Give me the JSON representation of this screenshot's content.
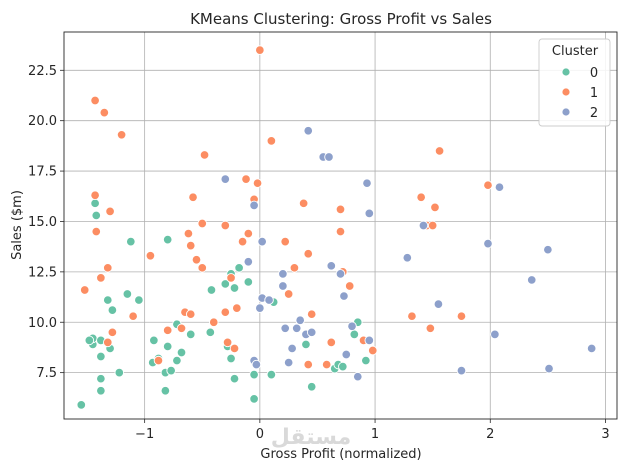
{
  "chart_data": {
    "type": "scatter",
    "title": "KMeans Clustering: Gross Profit vs Sales",
    "xlabel": "Gross Profit (normalized)",
    "ylabel": "Sales ($m)",
    "xlim": [
      -1.7,
      3.1
    ],
    "ylim": [
      5.2,
      24.4
    ],
    "x_ticks": [
      -1,
      0,
      1,
      2,
      3
    ],
    "x_tick_labels": [
      "−1",
      "0",
      "1",
      "2",
      "3"
    ],
    "y_ticks": [
      7.5,
      10.0,
      12.5,
      15.0,
      17.5,
      20.0,
      22.5
    ],
    "y_tick_labels": [
      "7.5",
      "10.0",
      "12.5",
      "15.0",
      "17.5",
      "20.0",
      "22.5"
    ],
    "grid": true,
    "legend": {
      "title": "Cluster",
      "placement": "top-right"
    },
    "watermark": "مستقل",
    "series": [
      {
        "name": "0",
        "color": "#66c2a5",
        "points": [
          [
            -1.55,
            5.9
          ],
          [
            -1.38,
            6.6
          ],
          [
            -1.38,
            7.2
          ],
          [
            -1.22,
            7.5
          ],
          [
            -1.45,
            8.9
          ],
          [
            -1.38,
            8.3
          ],
          [
            -1.3,
            8.7
          ],
          [
            -1.45,
            9.2
          ],
          [
            -1.48,
            9.1
          ],
          [
            -1.38,
            9.1
          ],
          [
            -1.32,
            11.1
          ],
          [
            -1.28,
            10.6
          ],
          [
            -1.15,
            11.4
          ],
          [
            -1.05,
            11.1
          ],
          [
            -1.12,
            14.0
          ],
          [
            -1.43,
            15.9
          ],
          [
            -1.42,
            15.3
          ],
          [
            -0.92,
            9.1
          ],
          [
            -0.93,
            8.0
          ],
          [
            -0.88,
            8.2
          ],
          [
            -0.82,
            7.5
          ],
          [
            -0.77,
            7.6
          ],
          [
            -0.72,
            8.1
          ],
          [
            -0.68,
            8.5
          ],
          [
            -0.82,
            6.6
          ],
          [
            -0.8,
            8.8
          ],
          [
            -0.72,
            9.9
          ],
          [
            -0.6,
            9.4
          ],
          [
            -0.43,
            9.5
          ],
          [
            -0.8,
            14.1
          ],
          [
            -0.42,
            11.6
          ],
          [
            -0.3,
            11.9
          ],
          [
            -0.25,
            12.4
          ],
          [
            -0.18,
            12.7
          ],
          [
            -0.22,
            11.7
          ],
          [
            -0.1,
            12.0
          ],
          [
            -0.28,
            8.8
          ],
          [
            -0.25,
            8.2
          ],
          [
            -0.22,
            7.2
          ],
          [
            -0.05,
            7.4
          ],
          [
            0.1,
            7.4
          ],
          [
            -0.05,
            6.2
          ],
          [
            0.12,
            11.0
          ],
          [
            0.4,
            8.9
          ],
          [
            0.45,
            6.8
          ],
          [
            0.65,
            7.7
          ],
          [
            0.68,
            7.9
          ],
          [
            0.72,
            7.8
          ],
          [
            0.82,
            9.4
          ],
          [
            0.92,
            8.1
          ],
          [
            0.85,
            10.0
          ]
        ]
      },
      {
        "name": "1",
        "color": "#fc8d62",
        "points": [
          [
            -1.43,
            21.0
          ],
          [
            -1.35,
            20.4
          ],
          [
            -1.2,
            19.3
          ],
          [
            -1.43,
            16.3
          ],
          [
            -1.3,
            15.5
          ],
          [
            -1.42,
            14.5
          ],
          [
            -1.32,
            12.7
          ],
          [
            -1.38,
            12.2
          ],
          [
            -1.52,
            11.6
          ],
          [
            -1.28,
            9.5
          ],
          [
            -1.32,
            9.0
          ],
          [
            -1.1,
            10.3
          ],
          [
            -0.95,
            13.3
          ],
          [
            -0.88,
            8.1
          ],
          [
            -0.8,
            9.6
          ],
          [
            -0.68,
            9.7
          ],
          [
            -0.62,
            14.4
          ],
          [
            -0.6,
            13.8
          ],
          [
            -0.58,
            16.2
          ],
          [
            -0.55,
            13.1
          ],
          [
            -0.48,
            18.3
          ],
          [
            -0.5,
            14.9
          ],
          [
            -0.5,
            12.7
          ],
          [
            -0.65,
            10.5
          ],
          [
            -0.6,
            10.4
          ],
          [
            -0.4,
            10.0
          ],
          [
            -0.3,
            10.5
          ],
          [
            -0.2,
            10.7
          ],
          [
            -0.3,
            14.8
          ],
          [
            -0.25,
            12.2
          ],
          [
            -0.15,
            14.0
          ],
          [
            -0.1,
            14.4
          ],
          [
            -0.12,
            17.1
          ],
          [
            -0.05,
            16.1
          ],
          [
            -0.02,
            16.9
          ],
          [
            -0.28,
            9.0
          ],
          [
            -0.22,
            8.7
          ],
          [
            0.0,
            23.5
          ],
          [
            0.1,
            19.0
          ],
          [
            0.22,
            14.0
          ],
          [
            0.25,
            11.4
          ],
          [
            0.3,
            12.7
          ],
          [
            0.38,
            15.9
          ],
          [
            0.42,
            13.4
          ],
          [
            0.45,
            10.4
          ],
          [
            0.42,
            7.9
          ],
          [
            0.58,
            7.9
          ],
          [
            0.62,
            9.0
          ],
          [
            0.7,
            14.5
          ],
          [
            0.7,
            15.6
          ],
          [
            0.72,
            12.5
          ],
          [
            0.78,
            11.8
          ],
          [
            0.9,
            9.1
          ],
          [
            0.98,
            8.6
          ],
          [
            1.4,
            16.2
          ],
          [
            1.45,
            14.8
          ],
          [
            1.48,
            9.7
          ],
          [
            1.5,
            14.8
          ],
          [
            1.52,
            15.7
          ],
          [
            1.56,
            18.5
          ],
          [
            1.32,
            10.3
          ],
          [
            1.75,
            10.3
          ],
          [
            1.98,
            16.8
          ]
        ]
      },
      {
        "name": "2",
        "color": "#8da0cb",
        "points": [
          [
            -0.3,
            17.1
          ],
          [
            -0.05,
            15.8
          ],
          [
            -0.05,
            8.1
          ],
          [
            -0.1,
            13.0
          ],
          [
            0.02,
            14.0
          ],
          [
            0.02,
            11.2
          ],
          [
            0.0,
            10.7
          ],
          [
            -0.03,
            7.9
          ],
          [
            0.08,
            11.1
          ],
          [
            0.2,
            12.4
          ],
          [
            0.2,
            11.8
          ],
          [
            0.22,
            9.7
          ],
          [
            0.25,
            8.0
          ],
          [
            0.28,
            8.7
          ],
          [
            0.32,
            9.7
          ],
          [
            0.35,
            10.1
          ],
          [
            0.4,
            9.4
          ],
          [
            0.42,
            19.5
          ],
          [
            0.45,
            9.5
          ],
          [
            0.55,
            18.2
          ],
          [
            0.6,
            18.2
          ],
          [
            0.62,
            12.8
          ],
          [
            0.7,
            12.4
          ],
          [
            0.73,
            11.3
          ],
          [
            0.75,
            8.4
          ],
          [
            0.8,
            9.8
          ],
          [
            0.85,
            7.3
          ],
          [
            0.93,
            16.9
          ],
          [
            0.95,
            15.4
          ],
          [
            0.95,
            9.1
          ],
          [
            1.28,
            13.2
          ],
          [
            1.42,
            14.8
          ],
          [
            1.55,
            10.9
          ],
          [
            1.75,
            7.6
          ],
          [
            1.98,
            13.9
          ],
          [
            2.04,
            9.4
          ],
          [
            2.08,
            16.7
          ],
          [
            2.36,
            12.1
          ],
          [
            2.5,
            13.6
          ],
          [
            2.51,
            7.7
          ],
          [
            2.88,
            8.7
          ]
        ]
      }
    ]
  }
}
